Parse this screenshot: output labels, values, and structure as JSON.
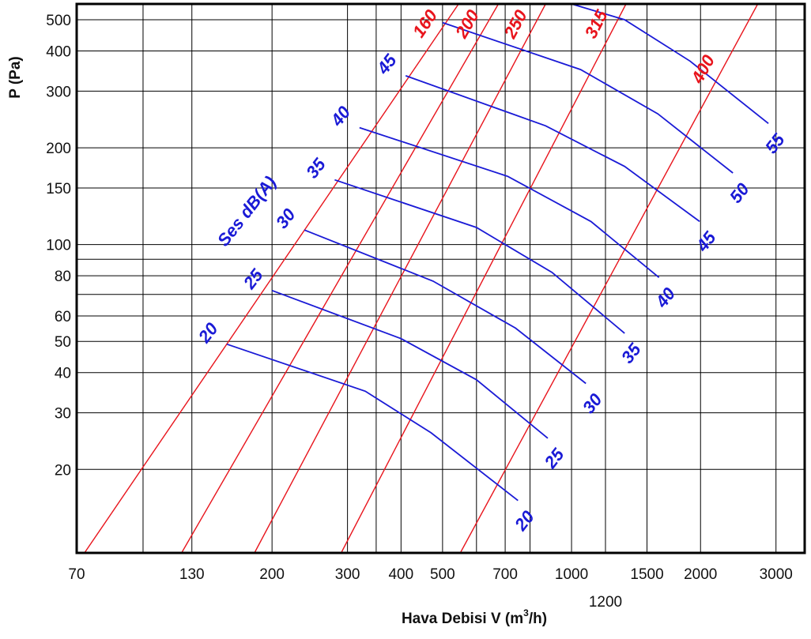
{
  "chart_data": {
    "type": "line",
    "title": "",
    "xlabel": "Hava Debisi  V (m",
    "xlabel_sup": "3",
    "xlabel_tail": "/h)",
    "ylabel": "P (Pa)",
    "xscale": "log",
    "yscale": "log",
    "xlim": [
      70,
      3500
    ],
    "ylim": [
      11,
      560
    ],
    "grid": true,
    "x_gridlines": [
      70,
      100,
      130,
      200,
      300,
      350,
      400,
      500,
      600,
      700,
      800,
      1000,
      1200,
      1500,
      2000,
      3000
    ],
    "y_gridlines": [
      20,
      30,
      40,
      50,
      60,
      70,
      80,
      90,
      100,
      150,
      200,
      300,
      400,
      500
    ],
    "x_ticks": [
      "70",
      "130",
      "200",
      "300",
      "400",
      "500",
      "700",
      "1000",
      "1200",
      "1500",
      "2000",
      "3000"
    ],
    "x_tick_values": [
      70,
      130,
      200,
      300,
      400,
      500,
      700,
      1000,
      1200,
      1500,
      2000,
      3000
    ],
    "y_ticks": [
      "20",
      "30",
      "40",
      "50",
      "60",
      "80",
      "100",
      "150",
      "200",
      "300",
      "400",
      "500"
    ],
    "y_tick_values": [
      20,
      30,
      40,
      50,
      60,
      80,
      100,
      150,
      200,
      300,
      400,
      500
    ],
    "size_lines": [
      {
        "label": "160",
        "points": [
          [
            73,
            11
          ],
          [
            545,
            560
          ]
        ]
      },
      {
        "label": "200",
        "points": [
          [
            123,
            11
          ],
          [
            675,
            560
          ]
        ]
      },
      {
        "label": "250",
        "points": [
          [
            182,
            11
          ],
          [
            870,
            560
          ]
        ]
      },
      {
        "label": "315",
        "points": [
          [
            290,
            11
          ],
          [
            1340,
            560
          ]
        ]
      },
      {
        "label": "400",
        "points": [
          [
            550,
            11
          ],
          [
            2720,
            560
          ]
        ]
      }
    ],
    "noise_title": "Ses   dB(A)",
    "noise_curves": [
      {
        "name": "20",
        "points": [
          [
            157,
            49
          ],
          [
            330,
            35
          ],
          [
            470,
            26
          ],
          [
            750,
            16
          ]
        ]
      },
      {
        "name": "25",
        "points": [
          [
            200,
            72
          ],
          [
            400,
            51
          ],
          [
            600,
            38
          ],
          [
            880,
            25
          ]
        ]
      },
      {
        "name": "30",
        "points": [
          [
            238,
            111
          ],
          [
            475,
            77
          ],
          [
            740,
            55
          ],
          [
            1080,
            37
          ]
        ]
      },
      {
        "name": "35",
        "points": [
          [
            280,
            159
          ],
          [
            600,
            113
          ],
          [
            900,
            82
          ],
          [
            1330,
            53
          ]
        ]
      },
      {
        "name": "40",
        "points": [
          [
            320,
            231
          ],
          [
            710,
            163
          ],
          [
            1110,
            118
          ],
          [
            1600,
            79
          ]
        ]
      },
      {
        "name": "45",
        "points": [
          [
            410,
            335
          ],
          [
            870,
            234
          ],
          [
            1330,
            175
          ],
          [
            1990,
            118
          ]
        ]
      },
      {
        "name": "50",
        "points": [
          [
            500,
            490
          ],
          [
            1050,
            350
          ],
          [
            1590,
            255
          ],
          [
            2380,
            167
          ]
        ]
      },
      {
        "name": "55",
        "points": [
          [
            1000,
            560
          ],
          [
            1330,
            500
          ],
          [
            1890,
            372
          ],
          [
            2880,
            238
          ]
        ]
      }
    ],
    "noise_start_labels": [
      "20",
      "25",
      "30",
      "35",
      "40",
      "45"
    ],
    "noise_end_labels": [
      "20",
      "25",
      "30",
      "35",
      "40",
      "45",
      "50",
      "55"
    ]
  }
}
